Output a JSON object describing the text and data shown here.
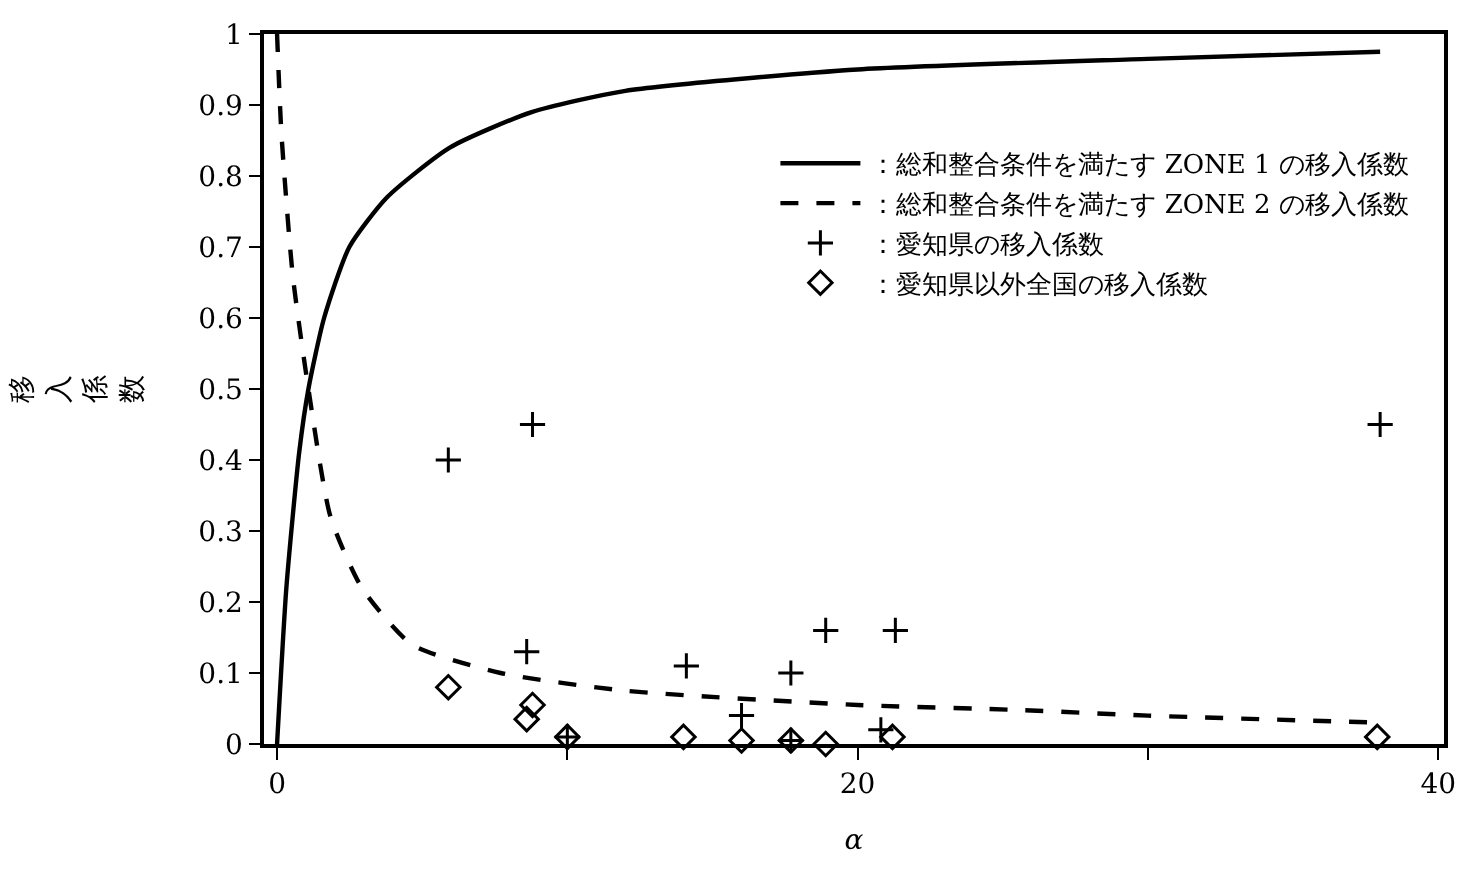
{
  "chart_data": {
    "type": "line",
    "xlabel": "α",
    "ylabel": "移入係数",
    "xlim": [
      -0.45,
      40.2
    ],
    "ylim": [
      0,
      1
    ],
    "xticks": [
      0,
      {
        "value": 10,
        "label": null
      },
      20,
      {
        "value": 30,
        "label": null
      },
      40
    ],
    "yticks": [
      0,
      0.1,
      0.2,
      0.3,
      0.4,
      0.5,
      0.6,
      0.7,
      0.8,
      0.9,
      1
    ],
    "grid": false,
    "legend": "top right",
    "series": [
      {
        "name": "：総和整合条件を満たす ZONE 1 の移入係数",
        "line_style": "solid",
        "marker": "none",
        "color": "#000000",
        "x": [
          0,
          0.32,
          0.76,
          1.08,
          1.62,
          2.49,
          3.79,
          5.95,
          8.77,
          12,
          20,
          30,
          38
        ],
        "values": [
          0,
          0.22,
          0.41,
          0.5,
          0.6,
          0.7,
          0.77,
          0.84,
          0.89,
          0.92,
          0.95,
          0.965,
          0.975
        ]
      },
      {
        "name": "：総和整合条件を満たす ZONE 2 の移入係数",
        "line_style": "dashed",
        "marker": "none",
        "color": "#000000",
        "x": [
          0,
          0.15,
          0.54,
          1.08,
          1.84,
          2.92,
          4.65,
          7.7,
          12,
          20,
          25.5,
          30,
          38
        ],
        "values": [
          1,
          0.86,
          0.66,
          0.5,
          0.32,
          0.22,
          0.14,
          0.1,
          0.075,
          0.055,
          0.048,
          0.04,
          0.03
        ]
      },
      {
        "name": "：愛知県の移入係数",
        "type": "scatter",
        "marker": "cross",
        "color": "#000000",
        "x": [
          5.9,
          8.8,
          8.6,
          10.0,
          14.1,
          16.0,
          17.7,
          17.7,
          18.9,
          20.8,
          21.3,
          38.0
        ],
        "values": [
          0.4,
          0.45,
          0.13,
          0.01,
          0.11,
          0.04,
          0.1,
          0.005,
          0.16,
          0.02,
          0.16,
          0.45
        ]
      },
      {
        "name": "：愛知県以外全国の移入係数",
        "type": "scatter",
        "marker": "diamond",
        "color": "#000000",
        "x": [
          5.9,
          8.8,
          8.6,
          10.0,
          14.0,
          16.0,
          17.7,
          18.9,
          21.2,
          37.9
        ],
        "values": [
          0.08,
          0.055,
          0.035,
          0.01,
          0.01,
          0.005,
          0.005,
          0.0,
          0.01,
          0.01
        ]
      }
    ]
  }
}
